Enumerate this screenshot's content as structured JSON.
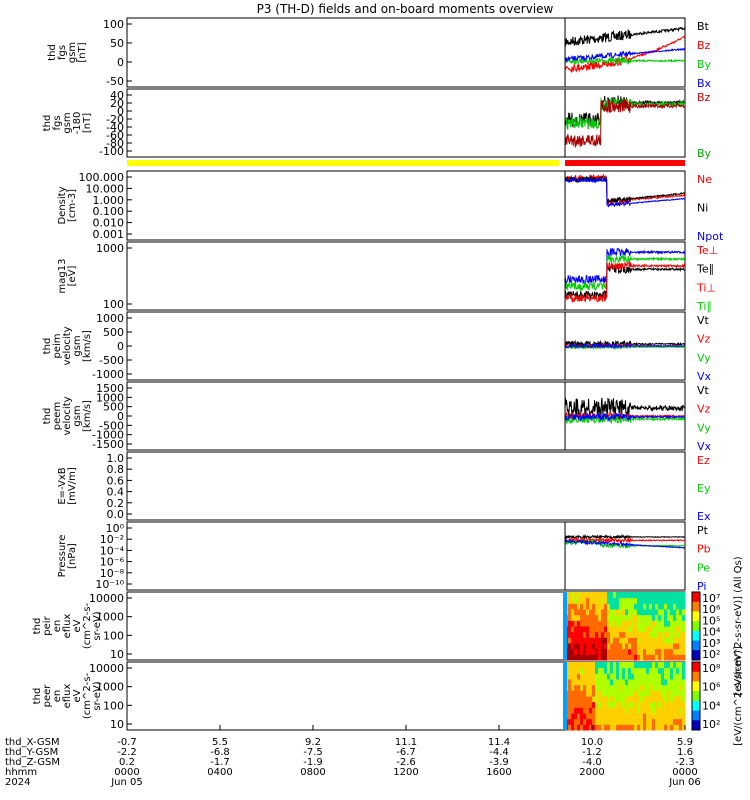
{
  "title": "P3 (TH-D) fields and on-board moments overview",
  "colors": {
    "black": "#000000",
    "red": "#ff0000",
    "green": "#00cc00",
    "blue": "#0000ff",
    "yellow": "#ffff00"
  },
  "chart_data": {
    "type": "line",
    "x_tick_rows": [
      {
        "name": "thd_X-GSM",
        "values": [
          "-0.7",
          "5.5",
          "9.2",
          "11.1",
          "11.4",
          "10.0",
          "5.9"
        ]
      },
      {
        "name": "thd_Y-GSM",
        "values": [
          "-2.2",
          "-6.8",
          "-7.5",
          "-6.7",
          "-4.4",
          "-1.2",
          "1.6"
        ]
      },
      {
        "name": "thd_Z-GSM",
        "values": [
          "0.2",
          "-1.7",
          "-1.9",
          "-2.6",
          "-3.9",
          "-4.0",
          "-2.3"
        ]
      },
      {
        "name": "hhmm",
        "values": [
          "0000",
          "0400",
          "0800",
          "1200",
          "1600",
          "2000",
          "0000"
        ]
      },
      {
        "name": "2024",
        "values": [
          "Jun 05",
          "",
          "",
          "",
          "",
          "",
          "Jun 06"
        ]
      }
    ],
    "panels": [
      {
        "id": "fgs",
        "ylabel": [
          "thd",
          "fgs",
          "gsm",
          "[nT]"
        ],
        "yticks": [
          "100",
          "50",
          "0",
          "-50"
        ],
        "legend": [
          {
            "text": "Bt",
            "color": "#000000"
          },
          {
            "text": "Bz",
            "color": "#ff0000"
          },
          {
            "text": "By",
            "color": "#00cc00"
          },
          {
            "text": "Bx",
            "color": "#0000ff"
          }
        ]
      },
      {
        "id": "fgs_angle",
        "ylabel": [
          "thd",
          "fgs",
          "gsm",
          "-180",
          "[nT]"
        ],
        "yticks": [
          "40",
          "20",
          "0",
          "-20",
          "-40",
          "-60",
          "-80",
          "-100"
        ],
        "legend": [
          {
            "text": "Bz",
            "color": "#cc0000"
          },
          {
            "text": "By",
            "color": "#00aa00"
          }
        ]
      },
      {
        "id": "density",
        "ylabel": [
          "Density",
          "[cm-3]"
        ],
        "yticks": [
          "100.000",
          "10.000",
          "1.000",
          "0.100",
          "0.010",
          "0.001"
        ],
        "legend": [
          {
            "text": "Ne",
            "color": "#ff0000"
          },
          {
            "text": "Ni",
            "color": "#000000"
          },
          {
            "text": "Npot",
            "color": "#0000ff"
          }
        ]
      },
      {
        "id": "temp",
        "ylabel": [
          "mag13",
          "[eV]"
        ],
        "yticks": [
          "1000",
          "100"
        ],
        "legend": [
          {
            "text": "Te⊥",
            "color": "#ff0000"
          },
          {
            "text": "Te∥",
            "color": "#000000"
          },
          {
            "text": "Ti⊥",
            "color": "#ff0000"
          },
          {
            "text": "Ti∥",
            "color": "#00cc00"
          }
        ]
      },
      {
        "id": "vi",
        "ylabel": [
          "thd",
          "peim",
          "velocity",
          "gsm",
          "[km/s]"
        ],
        "yticks": [
          "1000",
          "500",
          "0",
          "-500",
          "-1000"
        ],
        "legend": [
          {
            "text": "Vt",
            "color": "#000000"
          },
          {
            "text": "Vz",
            "color": "#ff0000"
          },
          {
            "text": "Vy",
            "color": "#00cc00"
          },
          {
            "text": "Vx",
            "color": "#0000ff"
          }
        ]
      },
      {
        "id": "ve",
        "ylabel": [
          "thd",
          "peem",
          "velocity",
          "gsm",
          "[km/s]"
        ],
        "yticks": [
          "1500",
          "1000",
          "500",
          "0",
          "-500",
          "-1000",
          "-1500"
        ],
        "legend": [
          {
            "text": "Vt",
            "color": "#000000"
          },
          {
            "text": "Vz",
            "color": "#ff0000"
          },
          {
            "text": "Vy",
            "color": "#00cc00"
          },
          {
            "text": "Vx",
            "color": "#0000ff"
          }
        ]
      },
      {
        "id": "efield",
        "ylabel": [
          "E=-VxB",
          "[mV/m]"
        ],
        "yticks": [
          "1.0",
          "0.8",
          "0.6",
          "0.4",
          "0.2",
          "0.0"
        ],
        "legend": [
          {
            "text": "Ez",
            "color": "#ff0000"
          },
          {
            "text": "Ey",
            "color": "#00cc00"
          },
          {
            "text": "Ex",
            "color": "#0000ff"
          }
        ]
      },
      {
        "id": "pressure",
        "ylabel": [
          "Pressure",
          "[nPa]"
        ],
        "yticks": [
          "10⁰",
          "10⁻²",
          "10⁻⁴",
          "10⁻⁶",
          "10⁻⁸",
          "10⁻¹⁰"
        ],
        "legend": [
          {
            "text": "Pt",
            "color": "#000000"
          },
          {
            "text": "Pb",
            "color": "#ff0000"
          },
          {
            "text": "Pe",
            "color": "#00cc00"
          },
          {
            "text": "Pi",
            "color": "#0000ff"
          }
        ]
      },
      {
        "id": "ion_spec",
        "ylabel": [
          "thd",
          "peir",
          "en",
          "eflux",
          "eV",
          "(cm^2-s-",
          "sr-eV)"
        ],
        "yticks": [
          "10000",
          "1000",
          "100",
          "10"
        ],
        "legend": []
      },
      {
        "id": "ele_spec",
        "ylabel": [
          "thd",
          "peer",
          "en",
          "eflux",
          "eV",
          "(cm^2-s-",
          "sr-eV)"
        ],
        "yticks": [
          "10000",
          "1000",
          "100",
          "10"
        ],
        "legend": []
      }
    ],
    "colorbar_ion": {
      "ticks": [
        "10⁷",
        "10⁶",
        "10⁵",
        "10⁴",
        "10³",
        "10²"
      ],
      "label": "[eV/(cm^2-s-sr-eV)] (All Qs)"
    },
    "colorbar_ele": {
      "ticks": [
        "10⁸",
        "10⁶",
        "10⁴",
        "10²"
      ],
      "label": "[eV/(cm^2-s-sr-eV)]"
    }
  }
}
